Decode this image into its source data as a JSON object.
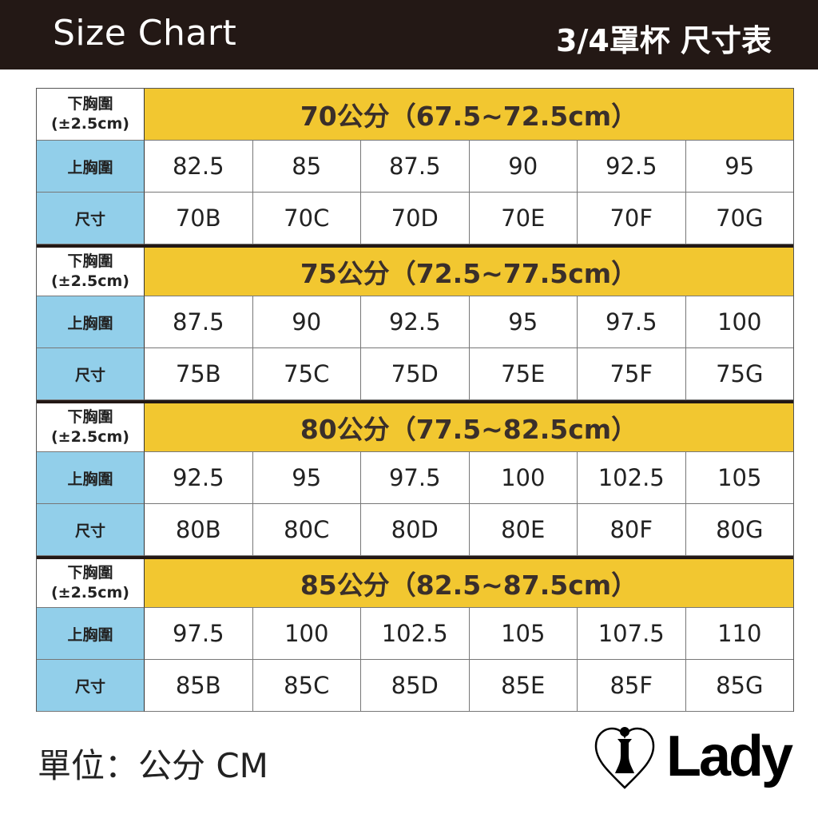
{
  "header": {
    "title": "Size Chart",
    "subtitle": "3/4罩杯 尺寸表"
  },
  "labels": {
    "underbust": "下胸圍",
    "tolerance": "(±2.5cm)",
    "bust": "上胸圍",
    "size": "尺寸"
  },
  "groups": [
    {
      "title": "70公分（67.5~72.5cm）",
      "bust": [
        "82.5",
        "85",
        "87.5",
        "90",
        "92.5",
        "95"
      ],
      "sizes": [
        "70B",
        "70C",
        "70D",
        "70E",
        "70F",
        "70G"
      ]
    },
    {
      "title": "75公分（72.5~77.5cm）",
      "bust": [
        "87.5",
        "90",
        "92.5",
        "95",
        "97.5",
        "100"
      ],
      "sizes": [
        "75B",
        "75C",
        "75D",
        "75E",
        "75F",
        "75G"
      ]
    },
    {
      "title": "80公分（77.5~82.5cm）",
      "bust": [
        "92.5",
        "95",
        "97.5",
        "100",
        "102.5",
        "105"
      ],
      "sizes": [
        "80B",
        "80C",
        "80D",
        "80E",
        "80F",
        "80G"
      ]
    },
    {
      "title": "85公分（82.5~87.5cm）",
      "bust": [
        "97.5",
        "100",
        "102.5",
        "105",
        "107.5",
        "110"
      ],
      "sizes": [
        "85B",
        "85C",
        "85D",
        "85E",
        "85F",
        "85G"
      ]
    }
  ],
  "footer": {
    "unit": "單位：公分 CM",
    "brand": "Lady"
  },
  "colors": {
    "header_bg": "#231815",
    "yellow": "#f2c730",
    "blue": "#92cfea"
  }
}
